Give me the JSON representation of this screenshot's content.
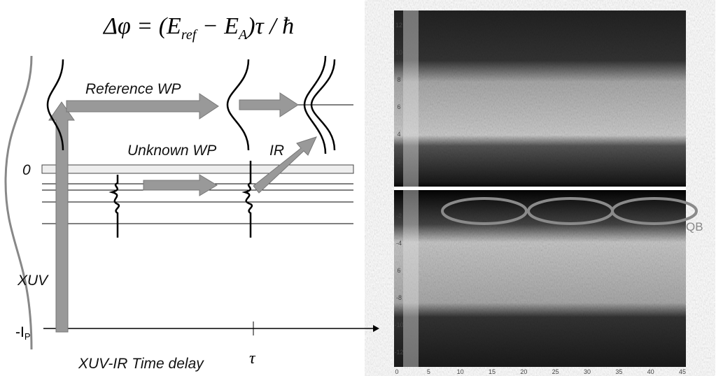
{
  "formula": [
    "Δφ = (E",
    "ref",
    " − E",
    "A",
    ")τ / ħ"
  ],
  "labels": {
    "reference": "Reference WP",
    "unknown": "Unknown WP",
    "ir": "IR",
    "zero": "0",
    "xuv": "XUV",
    "ip": "-I",
    "ip_sub": "P",
    "delay": "XUV-IR Time delay",
    "tau": "τ",
    "qb": "QB"
  },
  "spectrogram": {
    "yticks": [
      "12",
      "10",
      "8",
      "6",
      "4",
      "2",
      "-2",
      "-4",
      "6",
      "-8",
      "-10",
      "-12"
    ],
    "xticks": [
      "0",
      "5",
      "10",
      "15",
      "20",
      "25",
      "30",
      "35",
      "40",
      "45"
    ]
  }
}
